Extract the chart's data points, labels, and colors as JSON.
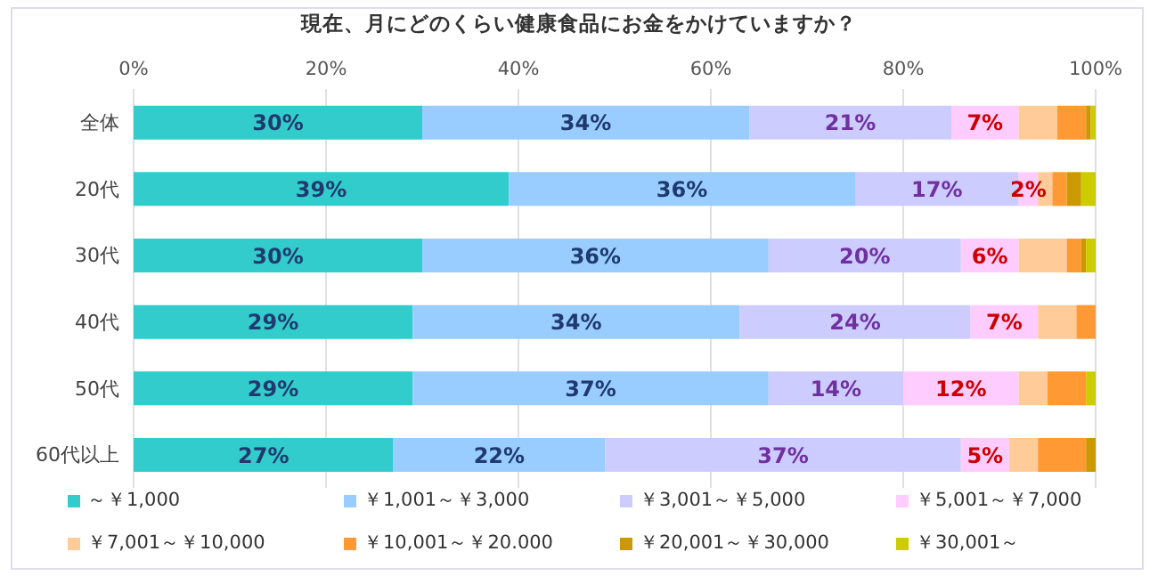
{
  "chart_data": {
    "type": "bar",
    "orientation": "horizontal",
    "stacked": true,
    "title": "現在、月にどのくらい健康食品にお金をかけていますか？",
    "categories": [
      "全体",
      "20代",
      "30代",
      "40代",
      "50代",
      "60代以上"
    ],
    "xlim": [
      0,
      100
    ],
    "xticks": [
      {
        "value": 0,
        "label": "0%"
      },
      {
        "value": 20,
        "label": "20%"
      },
      {
        "value": 40,
        "label": "40%"
      },
      {
        "value": 60,
        "label": "60%"
      },
      {
        "value": 80,
        "label": "80%"
      },
      {
        "value": 100,
        "label": "100%"
      }
    ],
    "grid": "x",
    "legend": "bottom",
    "series": [
      {
        "name": "～￥1,000",
        "color": "#33cccc",
        "values": [
          30,
          39,
          30,
          29,
          29,
          27
        ],
        "value_labels": [
          "30%",
          "39%",
          "30%",
          "29%",
          "29%",
          "27%"
        ]
      },
      {
        "name": "￥1,001～￥3,000",
        "color": "#99ccff",
        "values": [
          34,
          36,
          36,
          34,
          37,
          22
        ],
        "value_labels": [
          "34%",
          "36%",
          "36%",
          "34%",
          "37%",
          "22%"
        ]
      },
      {
        "name": "￥3,001～￥5,000",
        "color": "#ccccff",
        "values": [
          21,
          17,
          20,
          24,
          14,
          37
        ],
        "value_labels": [
          "21%",
          "17%",
          "20%",
          "24%",
          "14%",
          "37%"
        ]
      },
      {
        "name": "￥5,001～￥7,000",
        "color": "#ffccff",
        "values": [
          7,
          2,
          6,
          7,
          12,
          5
        ],
        "value_labels": [
          "7%",
          "2%",
          "6%",
          "7%",
          "12%",
          "5%"
        ]
      },
      {
        "name": "￥7,001～￥10,000",
        "color": "#ffcc99",
        "values": [
          4,
          1.5,
          5,
          4,
          3,
          3
        ]
      },
      {
        "name": "￥10,001～￥20.000",
        "color": "#ff9933",
        "values": [
          3,
          1.5,
          1.5,
          2,
          4,
          5
        ]
      },
      {
        "name": "￥20,001～￥30,000",
        "color": "#cc9900",
        "values": [
          0.5,
          1.5,
          0.5,
          0,
          0,
          1
        ]
      },
      {
        "name": "￥30,001～",
        "color": "#cccc00",
        "values": [
          0.5,
          1.5,
          1,
          0,
          1,
          0
        ]
      }
    ]
  }
}
